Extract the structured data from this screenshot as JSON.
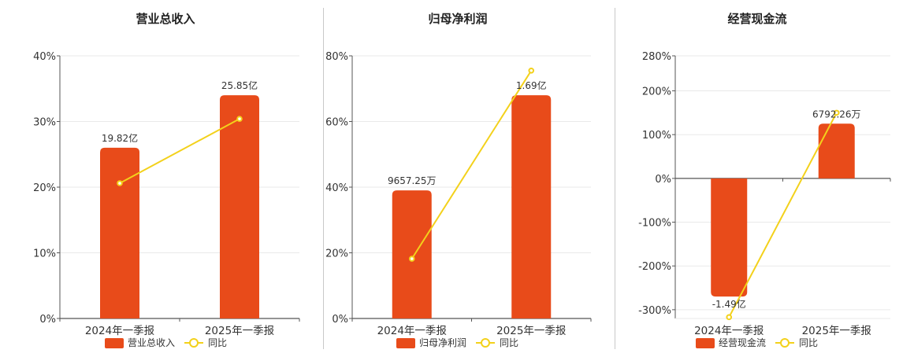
{
  "chart_data": [
    {
      "type": "bar",
      "title": "营业总收入",
      "categories": [
        "2024年一季报",
        "2025年一季报"
      ],
      "bar_labels": [
        "19.82亿",
        "25.85亿"
      ],
      "legend_bar": "营业总收入",
      "legend_line": "同比",
      "yticks": [
        "0%",
        "10%",
        "20%",
        "30%",
        "40%"
      ],
      "ylim": [
        0,
        40
      ],
      "bar_values": [
        26,
        34
      ],
      "line_values": [
        20.6,
        30.4
      ]
    },
    {
      "type": "bar",
      "title": "归母净利润",
      "categories": [
        "2024年一季报",
        "2025年一季报"
      ],
      "bar_labels": [
        "9657.25万",
        "1.69亿"
      ],
      "legend_bar": "归母净利润",
      "legend_line": "同比",
      "yticks": [
        "0%",
        "20%",
        "40%",
        "60%",
        "80%"
      ],
      "ylim": [
        0,
        80
      ],
      "bar_values": [
        39,
        68
      ],
      "line_values": [
        18.2,
        75.5
      ]
    },
    {
      "type": "bar",
      "title": "经营现金流",
      "categories": [
        "2024年一季报",
        "2025年一季报"
      ],
      "bar_labels": [
        "-1.49亿",
        "6792.26万"
      ],
      "legend_bar": "经营现金流",
      "legend_line": "同比",
      "yticks": [
        "-300%",
        "-200%",
        "-100%",
        "0%",
        "100%",
        "200%",
        "280%"
      ],
      "ylim": [
        -320,
        280
      ],
      "bar_values": [
        -270,
        125
      ],
      "line_values": [
        -317,
        150
      ]
    }
  ],
  "colors": {
    "bar": "#e84b1a",
    "line": "#f3d11b",
    "grid": "#e9e9e9",
    "axis": "#555555",
    "text": "#333333"
  }
}
